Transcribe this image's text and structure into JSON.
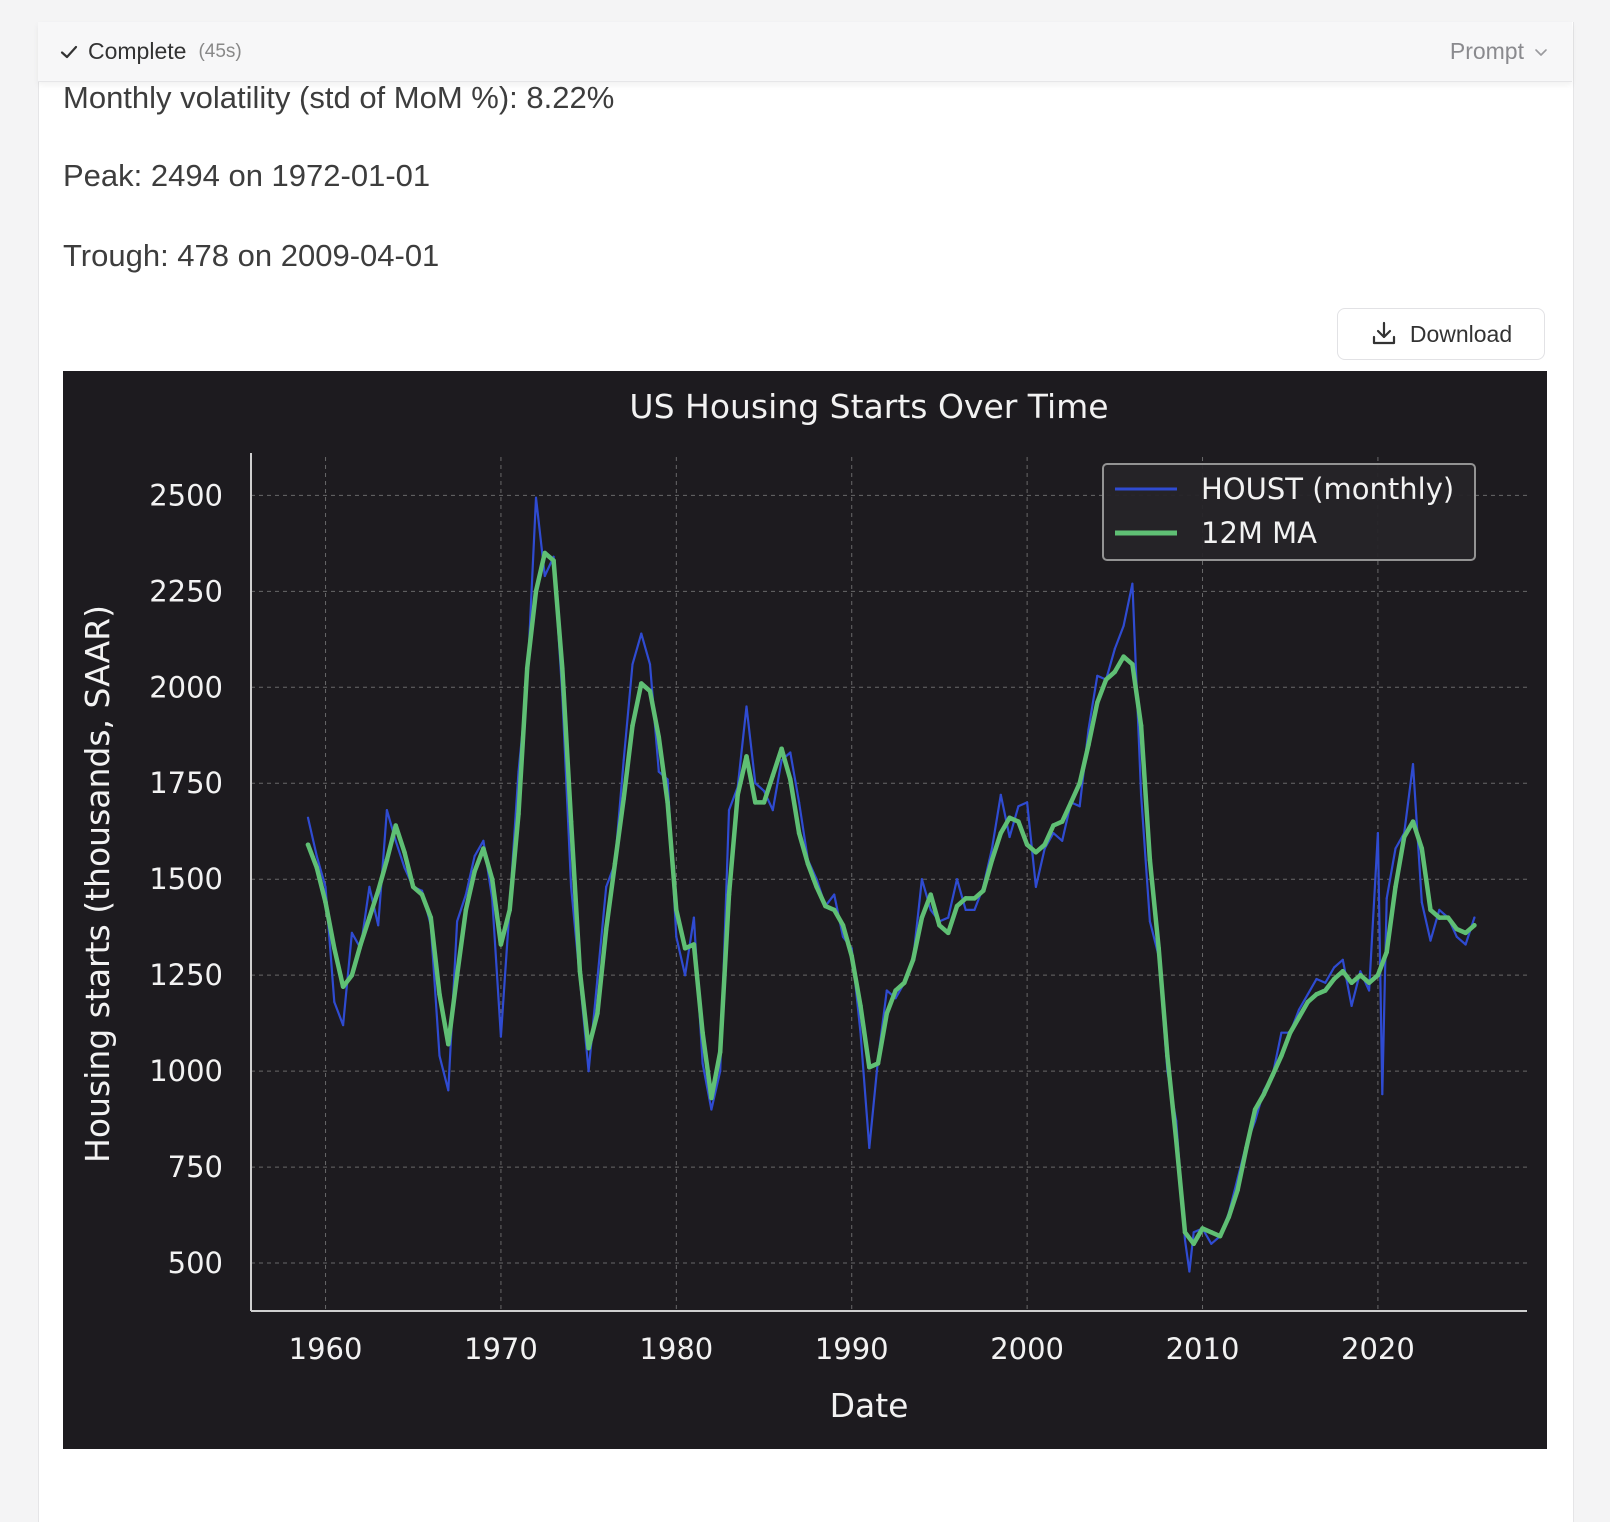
{
  "status": {
    "label": "Complete",
    "time": "(45s)",
    "prompt_label": "Prompt"
  },
  "stats": {
    "volatility": "Monthly volatility (std of MoM %): 8.22%",
    "peak": "Peak: 2494 on 1972-01-01",
    "trough": "Trough: 478 on 2009-04-01"
  },
  "download": {
    "label": "Download"
  },
  "colors": {
    "chart_bg": "#1d1b1f",
    "monthly": "#2f4bd1",
    "ma": "#5fbf74",
    "text": "#f2f2f2",
    "grid": "#9a9a9a"
  },
  "chart_data": {
    "type": "line",
    "title": "US Housing Starts Over Time",
    "xlabel": "Date",
    "ylabel": "Housing starts (thousands, SAAR)",
    "xlim": [
      "1955-10-01",
      "2028-07-01"
    ],
    "ylim": [
      375,
      2600
    ],
    "x_ticks": [
      {
        "label": "1960",
        "value": "1960-01-01"
      },
      {
        "label": "1970",
        "value": "1970-01-01"
      },
      {
        "label": "1980",
        "value": "1980-01-01"
      },
      {
        "label": "1990",
        "value": "1990-01-01"
      },
      {
        "label": "2000",
        "value": "2000-01-01"
      },
      {
        "label": "2010",
        "value": "2010-01-01"
      },
      {
        "label": "2020",
        "value": "2020-01-01"
      }
    ],
    "y_ticks": [
      500,
      750,
      1000,
      1250,
      1500,
      1750,
      2000,
      2250,
      2500
    ],
    "grid": true,
    "legend_position": "top-right",
    "series": [
      {
        "name": "HOUST (monthly)",
        "x": [
          "1959-01-01",
          "1959-07-01",
          "1960-01-01",
          "1960-07-01",
          "1961-01-01",
          "1961-07-01",
          "1962-01-01",
          "1962-07-01",
          "1963-01-01",
          "1963-07-01",
          "1964-01-01",
          "1964-07-01",
          "1965-01-01",
          "1965-07-01",
          "1966-01-01",
          "1966-07-01",
          "1967-01-01",
          "1967-07-01",
          "1968-01-01",
          "1968-07-01",
          "1969-01-01",
          "1969-07-01",
          "1970-01-01",
          "1970-07-01",
          "1971-01-01",
          "1971-07-01",
          "1972-01-01",
          "1972-07-01",
          "1973-01-01",
          "1973-07-01",
          "1974-01-01",
          "1974-07-01",
          "1975-01-01",
          "1975-07-01",
          "1976-01-01",
          "1976-07-01",
          "1977-01-01",
          "1977-07-01",
          "1978-01-01",
          "1978-07-01",
          "1979-01-01",
          "1979-07-01",
          "1980-01-01",
          "1980-07-01",
          "1981-01-01",
          "1981-07-01",
          "1982-01-01",
          "1982-07-01",
          "1983-01-01",
          "1983-07-01",
          "1984-01-01",
          "1984-07-01",
          "1985-01-01",
          "1985-07-01",
          "1986-01-01",
          "1986-07-01",
          "1987-01-01",
          "1987-07-01",
          "1988-01-01",
          "1988-07-01",
          "1989-01-01",
          "1989-07-01",
          "1990-01-01",
          "1990-07-01",
          "1991-01-01",
          "1991-07-01",
          "1992-01-01",
          "1992-07-01",
          "1993-01-01",
          "1993-07-01",
          "1994-01-01",
          "1994-07-01",
          "1995-01-01",
          "1995-07-01",
          "1996-01-01",
          "1996-07-01",
          "1997-01-01",
          "1997-07-01",
          "1998-01-01",
          "1998-07-01",
          "1999-01-01",
          "1999-07-01",
          "2000-01-01",
          "2000-07-01",
          "2001-01-01",
          "2001-07-01",
          "2002-01-01",
          "2002-07-01",
          "2003-01-01",
          "2003-07-01",
          "2004-01-01",
          "2004-07-01",
          "2005-01-01",
          "2005-07-01",
          "2006-01-01",
          "2006-07-01",
          "2007-01-01",
          "2007-07-01",
          "2008-01-01",
          "2008-07-01",
          "2009-01-01",
          "2009-04-01",
          "2009-07-01",
          "2010-01-01",
          "2010-07-01",
          "2011-01-01",
          "2011-07-01",
          "2012-01-01",
          "2012-07-01",
          "2013-01-01",
          "2013-07-01",
          "2014-01-01",
          "2014-07-01",
          "2015-01-01",
          "2015-07-01",
          "2016-01-01",
          "2016-07-01",
          "2017-01-01",
          "2017-07-01",
          "2018-01-01",
          "2018-07-01",
          "2019-01-01",
          "2019-07-01",
          "2020-01-01",
          "2020-04-01",
          "2020-07-01",
          "2021-01-01",
          "2021-07-01",
          "2022-01-01",
          "2022-07-01",
          "2023-01-01",
          "2023-07-01",
          "2024-01-01",
          "2024-07-01",
          "2025-01-01",
          "2025-07-01"
        ],
        "values": [
          1660,
          1560,
          1480,
          1180,
          1120,
          1360,
          1320,
          1480,
          1380,
          1680,
          1600,
          1530,
          1480,
          1470,
          1380,
          1040,
          950,
          1390,
          1460,
          1560,
          1600,
          1450,
          1090,
          1430,
          1780,
          2010,
          2494,
          2290,
          2340,
          1980,
          1480,
          1240,
          1000,
          1240,
          1480,
          1540,
          1810,
          2060,
          2140,
          2060,
          1780,
          1760,
          1350,
          1250,
          1400,
          1020,
          900,
          1000,
          1680,
          1740,
          1950,
          1750,
          1730,
          1680,
          1810,
          1830,
          1700,
          1550,
          1500,
          1430,
          1460,
          1350,
          1320,
          1100,
          800,
          1030,
          1210,
          1190,
          1230,
          1290,
          1500,
          1420,
          1390,
          1400,
          1500,
          1420,
          1420,
          1480,
          1580,
          1720,
          1610,
          1690,
          1700,
          1480,
          1580,
          1620,
          1600,
          1700,
          1690,
          1890,
          2030,
          2020,
          2100,
          2160,
          2270,
          1720,
          1390,
          1300,
          1000,
          870,
          560,
          478,
          580,
          590,
          550,
          570,
          630,
          720,
          810,
          870,
          950,
          990,
          1100,
          1100,
          1160,
          1200,
          1240,
          1230,
          1270,
          1290,
          1170,
          1260,
          1210,
          1620,
          940,
          1450,
          1580,
          1620,
          1800,
          1440,
          1340,
          1420,
          1400,
          1350,
          1330,
          1400
        ]
      },
      {
        "name": "12M MA",
        "x": [
          "1959-01-01",
          "1959-07-01",
          "1960-01-01",
          "1960-07-01",
          "1961-01-01",
          "1961-07-01",
          "1962-01-01",
          "1962-07-01",
          "1963-01-01",
          "1963-07-01",
          "1964-01-01",
          "1964-07-01",
          "1965-01-01",
          "1965-07-01",
          "1966-01-01",
          "1966-07-01",
          "1967-01-01",
          "1967-07-01",
          "1968-01-01",
          "1968-07-01",
          "1969-01-01",
          "1969-07-01",
          "1970-01-01",
          "1970-07-01",
          "1971-01-01",
          "1971-07-01",
          "1972-01-01",
          "1972-07-01",
          "1973-01-01",
          "1973-07-01",
          "1974-01-01",
          "1974-07-01",
          "1975-01-01",
          "1975-07-01",
          "1976-01-01",
          "1976-07-01",
          "1977-01-01",
          "1977-07-01",
          "1978-01-01",
          "1978-07-01",
          "1979-01-01",
          "1979-07-01",
          "1980-01-01",
          "1980-07-01",
          "1981-01-01",
          "1981-07-01",
          "1982-01-01",
          "1982-07-01",
          "1983-01-01",
          "1983-07-01",
          "1984-01-01",
          "1984-07-01",
          "1985-01-01",
          "1985-07-01",
          "1986-01-01",
          "1986-07-01",
          "1987-01-01",
          "1987-07-01",
          "1988-01-01",
          "1988-07-01",
          "1989-01-01",
          "1989-07-01",
          "1990-01-01",
          "1990-07-01",
          "1991-01-01",
          "1991-07-01",
          "1992-01-01",
          "1992-07-01",
          "1993-01-01",
          "1993-07-01",
          "1994-01-01",
          "1994-07-01",
          "1995-01-01",
          "1995-07-01",
          "1996-01-01",
          "1996-07-01",
          "1997-01-01",
          "1997-07-01",
          "1998-01-01",
          "1998-07-01",
          "1999-01-01",
          "1999-07-01",
          "2000-01-01",
          "2000-07-01",
          "2001-01-01",
          "2001-07-01",
          "2002-01-01",
          "2002-07-01",
          "2003-01-01",
          "2003-07-01",
          "2004-01-01",
          "2004-07-01",
          "2005-01-01",
          "2005-07-01",
          "2006-01-01",
          "2006-07-01",
          "2007-01-01",
          "2007-07-01",
          "2008-01-01",
          "2008-07-01",
          "2009-01-01",
          "2009-07-01",
          "2010-01-01",
          "2010-07-01",
          "2011-01-01",
          "2011-07-01",
          "2012-01-01",
          "2012-07-01",
          "2013-01-01",
          "2013-07-01",
          "2014-01-01",
          "2014-07-01",
          "2015-01-01",
          "2015-07-01",
          "2016-01-01",
          "2016-07-01",
          "2017-01-01",
          "2017-07-01",
          "2018-01-01",
          "2018-07-01",
          "2019-01-01",
          "2019-07-01",
          "2020-01-01",
          "2020-07-01",
          "2021-01-01",
          "2021-07-01",
          "2022-01-01",
          "2022-07-01",
          "2023-01-01",
          "2023-07-01",
          "2024-01-01",
          "2024-07-01",
          "2025-01-01",
          "2025-07-01"
        ],
        "values": [
          1590,
          1530,
          1440,
          1320,
          1220,
          1250,
          1330,
          1400,
          1470,
          1550,
          1640,
          1570,
          1480,
          1460,
          1400,
          1200,
          1070,
          1250,
          1420,
          1520,
          1580,
          1500,
          1330,
          1420,
          1670,
          2050,
          2250,
          2350,
          2330,
          2050,
          1650,
          1260,
          1060,
          1150,
          1370,
          1540,
          1710,
          1900,
          2010,
          1990,
          1870,
          1700,
          1420,
          1320,
          1330,
          1100,
          930,
          1050,
          1460,
          1720,
          1820,
          1700,
          1700,
          1770,
          1840,
          1760,
          1620,
          1540,
          1480,
          1430,
          1420,
          1380,
          1300,
          1170,
          1010,
          1020,
          1150,
          1210,
          1230,
          1290,
          1400,
          1460,
          1380,
          1360,
          1430,
          1450,
          1450,
          1470,
          1550,
          1620,
          1660,
          1650,
          1590,
          1570,
          1590,
          1640,
          1650,
          1700,
          1750,
          1850,
          1960,
          2020,
          2040,
          2080,
          2060,
          1900,
          1550,
          1320,
          1040,
          820,
          580,
          550,
          590,
          580,
          570,
          620,
          690,
          800,
          900,
          940,
          990,
          1040,
          1100,
          1140,
          1180,
          1200,
          1210,
          1240,
          1260,
          1230,
          1250,
          1230,
          1250,
          1310,
          1480,
          1610,
          1650,
          1580,
          1420,
          1400,
          1400,
          1370,
          1360,
          1380
        ]
      }
    ]
  }
}
